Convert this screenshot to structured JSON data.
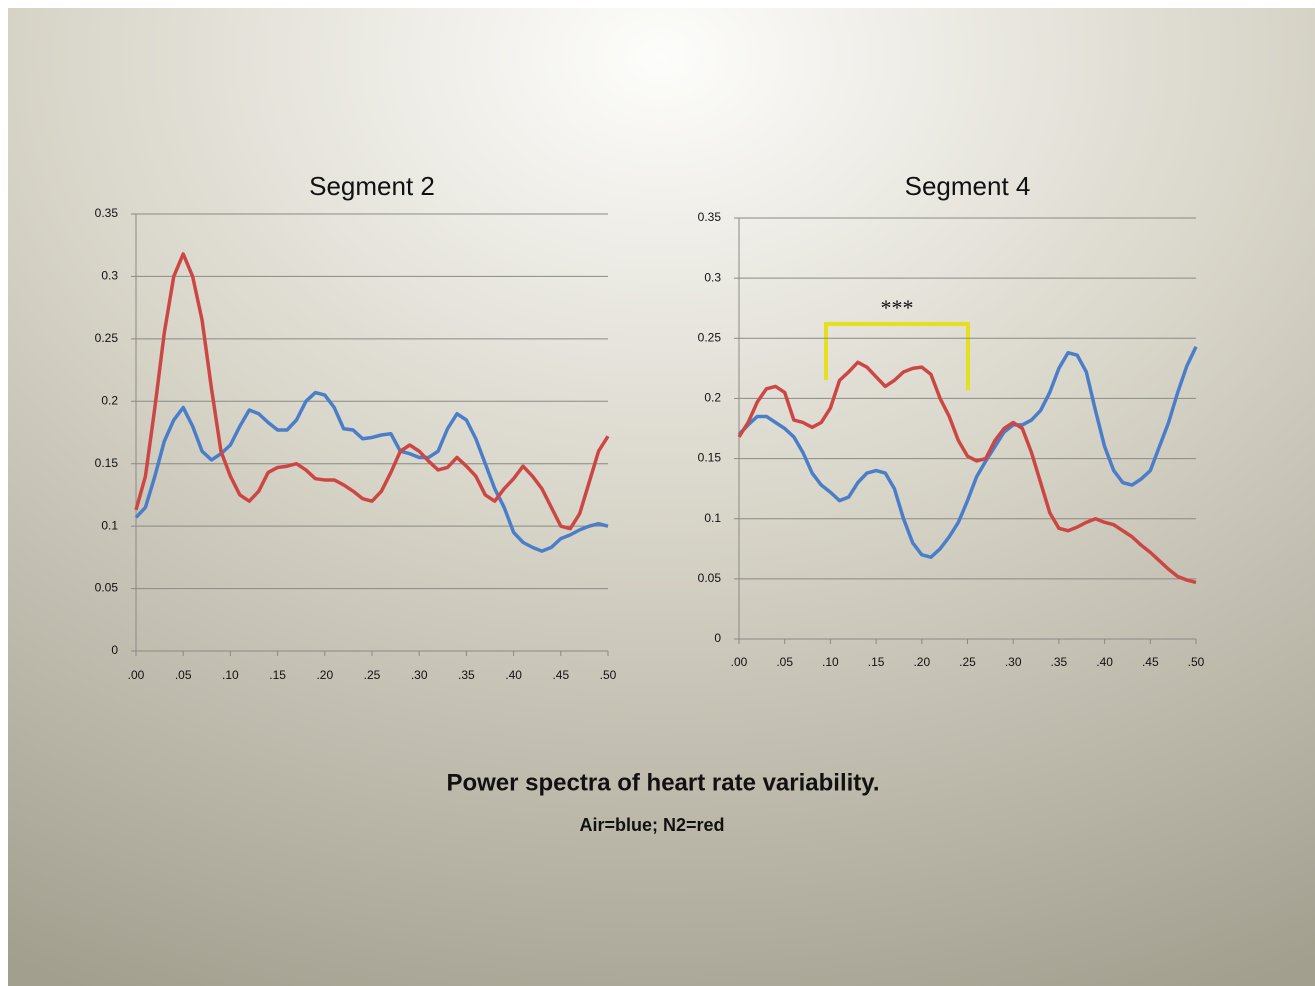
{
  "chart_data": [
    {
      "type": "line",
      "title": "Segment 2",
      "x": [
        0,
        0.01,
        0.02,
        0.03,
        0.04,
        0.05,
        0.06,
        0.07,
        0.08,
        0.09,
        0.1,
        0.11,
        0.12,
        0.13,
        0.14,
        0.15,
        0.16,
        0.17,
        0.18,
        0.19,
        0.2,
        0.21,
        0.22,
        0.23,
        0.24,
        0.25,
        0.26,
        0.27,
        0.28,
        0.29,
        0.3,
        0.31,
        0.32,
        0.33,
        0.34,
        0.35,
        0.36,
        0.37,
        0.38,
        0.39,
        0.4,
        0.41,
        0.42,
        0.43,
        0.44,
        0.45,
        0.46,
        0.47,
        0.48,
        0.49,
        0.5
      ],
      "series": [
        {
          "color": "#4a7ec8",
          "values": [
            0.107,
            0.115,
            0.14,
            0.168,
            0.185,
            0.195,
            0.18,
            0.16,
            0.153,
            0.158,
            0.165,
            0.18,
            0.193,
            0.19,
            0.183,
            0.177,
            0.177,
            0.185,
            0.2,
            0.207,
            0.205,
            0.195,
            0.178,
            0.177,
            0.17,
            0.171,
            0.173,
            0.174,
            0.16,
            0.158,
            0.155,
            0.155,
            0.16,
            0.178,
            0.19,
            0.185,
            0.17,
            0.15,
            0.13,
            0.115,
            0.095,
            0.087,
            0.083,
            0.08,
            0.083,
            0.09,
            0.093,
            0.097,
            0.1,
            0.102,
            0.1
          ]
        },
        {
          "color": "#cc4744",
          "values": [
            0.113,
            0.14,
            0.195,
            0.255,
            0.3,
            0.318,
            0.3,
            0.265,
            0.21,
            0.16,
            0.14,
            0.125,
            0.12,
            0.128,
            0.143,
            0.147,
            0.148,
            0.15,
            0.145,
            0.138,
            0.137,
            0.137,
            0.133,
            0.128,
            0.122,
            0.12,
            0.128,
            0.143,
            0.16,
            0.165,
            0.16,
            0.152,
            0.145,
            0.147,
            0.155,
            0.148,
            0.14,
            0.125,
            0.12,
            0.13,
            0.138,
            0.148,
            0.14,
            0.13,
            0.115,
            0.1,
            0.098,
            0.11,
            0.135,
            0.16,
            0.172
          ]
        }
      ],
      "xlim": [
        0,
        0.5
      ],
      "xticks": [
        {
          "value": 0,
          "label": ".00"
        },
        {
          "value": 0.05,
          "label": ".05"
        },
        {
          "value": 0.1,
          "label": ".10"
        },
        {
          "value": 0.15,
          "label": ".15"
        },
        {
          "value": 0.2,
          "label": ".20"
        },
        {
          "value": 0.25,
          "label": ".25"
        },
        {
          "value": 0.3,
          "label": ".30"
        },
        {
          "value": 0.35,
          "label": ".35"
        },
        {
          "value": 0.4,
          "label": ".40"
        },
        {
          "value": 0.45,
          "label": ".45"
        },
        {
          "value": 0.5,
          "label": ".50"
        }
      ],
      "ylim": [
        0,
        0.35
      ],
      "yticks": [
        0,
        0.05,
        0.1,
        0.15,
        0.2,
        0.25,
        0.3,
        0.35
      ],
      "grid": true
    },
    {
      "type": "line",
      "title": "Segment 4",
      "annotation": "***",
      "x": [
        0,
        0.01,
        0.02,
        0.03,
        0.04,
        0.05,
        0.06,
        0.07,
        0.08,
        0.09,
        0.1,
        0.11,
        0.12,
        0.13,
        0.14,
        0.15,
        0.16,
        0.17,
        0.18,
        0.19,
        0.2,
        0.21,
        0.22,
        0.23,
        0.24,
        0.25,
        0.26,
        0.27,
        0.28,
        0.29,
        0.3,
        0.31,
        0.32,
        0.33,
        0.34,
        0.35,
        0.36,
        0.37,
        0.38,
        0.39,
        0.4,
        0.41,
        0.42,
        0.43,
        0.44,
        0.45,
        0.46,
        0.47,
        0.48,
        0.49,
        0.5
      ],
      "series": [
        {
          "color": "#4a7ec8",
          "values": [
            0.17,
            0.178,
            0.185,
            0.185,
            0.18,
            0.175,
            0.168,
            0.155,
            0.138,
            0.128,
            0.122,
            0.115,
            0.118,
            0.13,
            0.138,
            0.14,
            0.138,
            0.125,
            0.1,
            0.08,
            0.07,
            0.068,
            0.075,
            0.085,
            0.097,
            0.115,
            0.135,
            0.148,
            0.16,
            0.172,
            0.178,
            0.178,
            0.182,
            0.19,
            0.205,
            0.225,
            0.238,
            0.236,
            0.222,
            0.19,
            0.16,
            0.14,
            0.13,
            0.128,
            0.133,
            0.14,
            0.16,
            0.18,
            0.205,
            0.227,
            0.243
          ]
        },
        {
          "color": "#cc4744",
          "values": [
            0.168,
            0.18,
            0.197,
            0.208,
            0.21,
            0.205,
            0.182,
            0.18,
            0.176,
            0.18,
            0.192,
            0.215,
            0.222,
            0.23,
            0.226,
            0.218,
            0.21,
            0.215,
            0.222,
            0.225,
            0.226,
            0.22,
            0.2,
            0.185,
            0.165,
            0.152,
            0.148,
            0.15,
            0.165,
            0.175,
            0.18,
            0.175,
            0.155,
            0.13,
            0.105,
            0.092,
            0.09,
            0.093,
            0.097,
            0.1,
            0.097,
            0.095,
            0.09,
            0.085,
            0.078,
            0.072,
            0.065,
            0.058,
            0.052,
            0.049,
            0.047
          ]
        }
      ],
      "xlim": [
        0,
        0.5
      ],
      "xticks": [
        {
          "value": 0,
          "label": ".00"
        },
        {
          "value": 0.05,
          "label": ".05"
        },
        {
          "value": 0.1,
          "label": ".10"
        },
        {
          "value": 0.15,
          "label": ".15"
        },
        {
          "value": 0.2,
          "label": ".20"
        },
        {
          "value": 0.25,
          "label": ".25"
        },
        {
          "value": 0.3,
          "label": ".30"
        },
        {
          "value": 0.35,
          "label": ".35"
        },
        {
          "value": 0.4,
          "label": ".40"
        },
        {
          "value": 0.45,
          "label": ".45"
        },
        {
          "value": 0.5,
          "label": ".50"
        }
      ],
      "ylim": [
        0,
        0.35
      ],
      "yticks": [
        0,
        0.05,
        0.1,
        0.15,
        0.2,
        0.25,
        0.3,
        0.35
      ],
      "grid": true
    }
  ],
  "caption": {
    "title": "Power spectra of heart rate variability.",
    "subtitle": "Air=blue; N2=red"
  }
}
